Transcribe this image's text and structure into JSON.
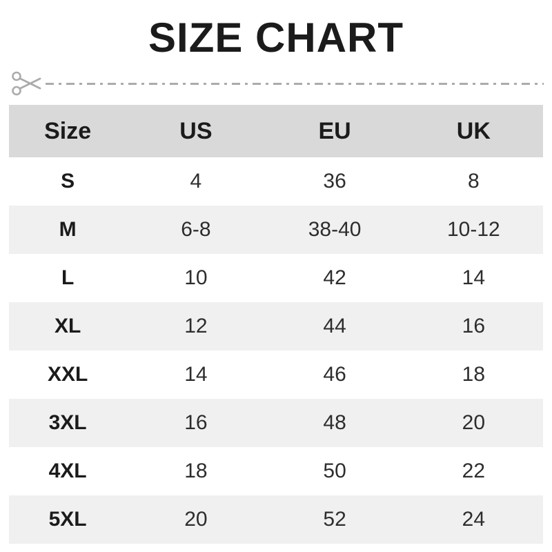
{
  "title": "SIZE CHART",
  "divider": {
    "icon": "scissors-icon",
    "style": "dash-dot"
  },
  "chart_data": {
    "type": "table",
    "title": "SIZE CHART",
    "columns": [
      "Size",
      "US",
      "EU",
      "UK"
    ],
    "rows": [
      [
        "S",
        "4",
        "36",
        "8"
      ],
      [
        "M",
        "6-8",
        "38-40",
        "10-12"
      ],
      [
        "L",
        "10",
        "42",
        "14"
      ],
      [
        "XL",
        "12",
        "44",
        "16"
      ],
      [
        "XXL",
        "14",
        "46",
        "18"
      ],
      [
        "3XL",
        "16",
        "48",
        "20"
      ],
      [
        "4XL",
        "18",
        "50",
        "22"
      ],
      [
        "5XL",
        "20",
        "52",
        "24"
      ]
    ]
  },
  "colors": {
    "page_bg": "#ffffff",
    "header_bg": "#d9d9d9",
    "alt_row_bg": "#f0f0f0",
    "text": "#1b1b1b",
    "value_text": "#2d2d2d",
    "divider": "#ababab"
  }
}
